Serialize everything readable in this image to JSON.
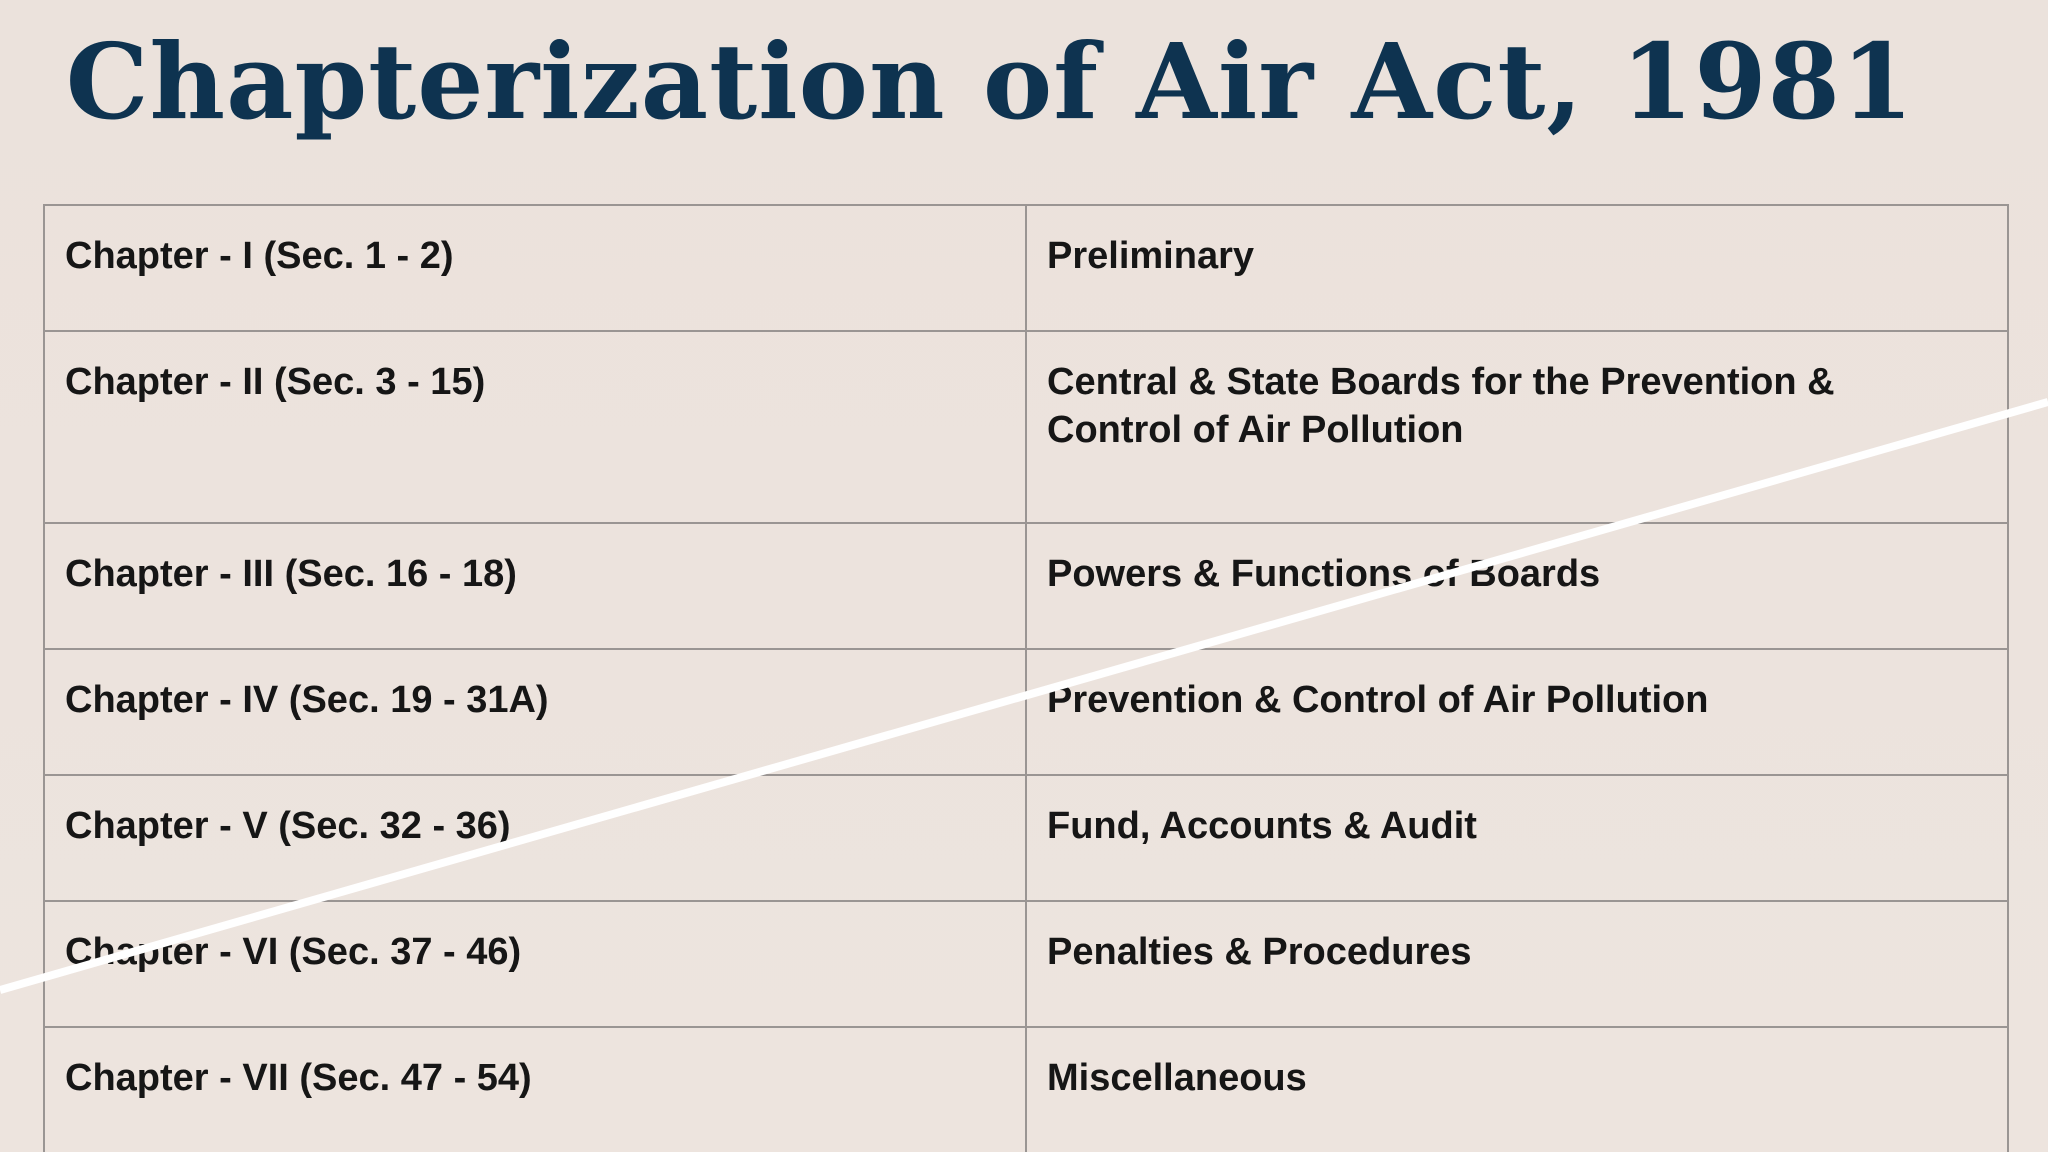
{
  "slide": {
    "title": "Chapterization of Air Act, 1981",
    "colors": {
      "background": "#ede3dd",
      "title": "#0e3350",
      "text": "#161616",
      "border": "#9a9593",
      "diagonal_line": "#ffffff"
    }
  },
  "table": {
    "rows": [
      {
        "chapter": "Chapter - I (Sec. 1 - 2)",
        "subject": "Preliminary"
      },
      {
        "chapter": "Chapter - II (Sec. 3 - 15)",
        "subject": "Central & State Boards for the Prevention & Control of Air Pollution"
      },
      {
        "chapter": "Chapter - III (Sec. 16 - 18)",
        "subject": "Powers & Functions of Boards"
      },
      {
        "chapter": "Chapter - IV (Sec. 19 - 31A)",
        "subject": "Prevention & Control of Air Pollution"
      },
      {
        "chapter": "Chapter - V (Sec. 32 - 36)",
        "subject": "Fund, Accounts & Audit"
      },
      {
        "chapter": "Chapter - VI (Sec. 37 - 46)",
        "subject": "Penalties & Procedures"
      },
      {
        "chapter": "Chapter - VII (Sec. 47 - 54)",
        "subject": "Miscellaneous"
      }
    ]
  }
}
